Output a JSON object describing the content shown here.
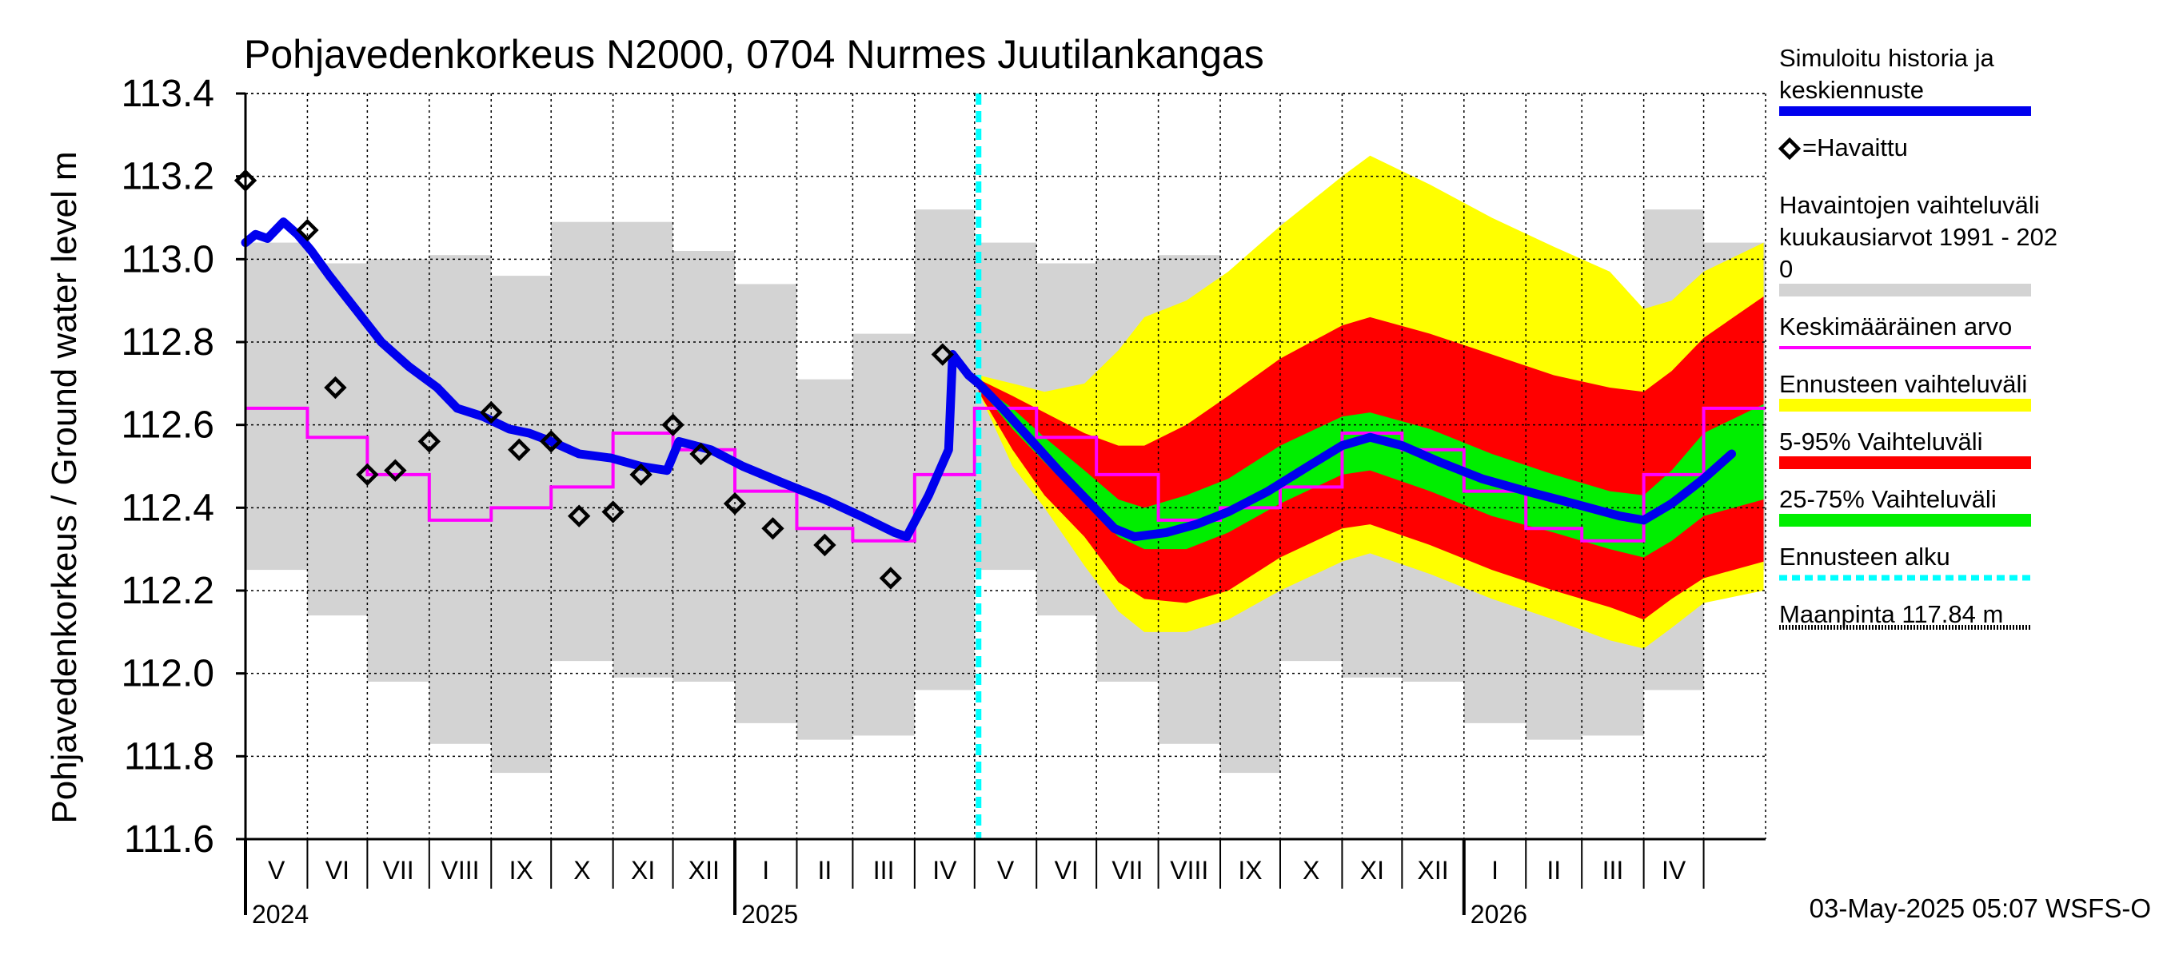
{
  "chart_data": {
    "type": "line",
    "title": "Pohjavedenkorkeus N2000, 0704 Nurmes Juutilankangas",
    "ylabel": "Pohjavedenkorkeus / Ground water level   m",
    "xlabel": "",
    "ylim": [
      111.6,
      113.4
    ],
    "yticks": [
      111.6,
      111.8,
      112.0,
      112.2,
      112.4,
      112.6,
      112.8,
      113.0,
      113.2,
      113.4
    ],
    "ytick_labels": [
      "111.6",
      "111.8",
      "112.0",
      "112.2",
      "112.4",
      "112.6",
      "112.8",
      "113.0",
      "113.2",
      "113.4"
    ],
    "x_range": [
      "2024-05-01",
      "2026-05-31"
    ],
    "months": [
      {
        "label": "V",
        "start": "2024-05-01"
      },
      {
        "label": "VI",
        "start": "2024-06-01"
      },
      {
        "label": "VII",
        "start": "2024-07-01"
      },
      {
        "label": "VIII",
        "start": "2024-08-01"
      },
      {
        "label": "IX",
        "start": "2024-09-01"
      },
      {
        "label": "X",
        "start": "2024-10-01"
      },
      {
        "label": "XI",
        "start": "2024-11-01"
      },
      {
        "label": "XII",
        "start": "2024-12-01"
      },
      {
        "label": "I",
        "start": "2025-01-01"
      },
      {
        "label": "II",
        "start": "2025-02-01"
      },
      {
        "label": "III",
        "start": "2025-03-01"
      },
      {
        "label": "IV",
        "start": "2025-04-01"
      },
      {
        "label": "V",
        "start": "2025-05-01"
      },
      {
        "label": "VI",
        "start": "2025-06-01"
      },
      {
        "label": "VII",
        "start": "2025-07-01"
      },
      {
        "label": "VIII",
        "start": "2025-08-01"
      },
      {
        "label": "IX",
        "start": "2025-09-01"
      },
      {
        "label": "X",
        "start": "2025-10-01"
      },
      {
        "label": "XI",
        "start": "2025-11-01"
      },
      {
        "label": "XII",
        "start": "2025-12-01"
      },
      {
        "label": "I",
        "start": "2026-01-01"
      },
      {
        "label": "II",
        "start": "2026-02-01"
      },
      {
        "label": "III",
        "start": "2026-03-01"
      },
      {
        "label": "IV",
        "start": "2026-04-01"
      },
      {
        "label": "",
        "start": "2026-05-01"
      }
    ],
    "year_labels": [
      {
        "label": "2024",
        "date": "2024-05-01"
      },
      {
        "label": "2025",
        "date": "2025-01-01"
      },
      {
        "label": "2026",
        "date": "2026-01-01"
      }
    ],
    "forecast_start": "2025-05-03",
    "grid": true,
    "legend_position": "right",
    "legend": [
      {
        "label_lines": [
          "Simuloitu historia ja",
          "keskiennuste"
        ],
        "style": "thick-line",
        "color": "#0000ee"
      },
      {
        "label_lines": [
          "=Havaittu"
        ],
        "style": "diamond-marker",
        "color": "#000000"
      },
      {
        "label_lines": [
          "Havaintojen vaihteluväli",
          " kuukausiarvot 1991 - 202",
          "0"
        ],
        "style": "band",
        "color": "#d3d3d3"
      },
      {
        "label_lines": [
          "Keskimääräinen arvo"
        ],
        "style": "thin-line",
        "color": "#ff00ff"
      },
      {
        "label_lines": [
          "Ennusteen vaihteluväli"
        ],
        "style": "band",
        "color": "#ffff00"
      },
      {
        "label_lines": [
          "5-95% Vaihteluväli"
        ],
        "style": "band",
        "color": "#ff0000"
      },
      {
        "label_lines": [
          "25-75% Vaihteluväli"
        ],
        "style": "band",
        "color": "#00ee00"
      },
      {
        "label_lines": [
          "Ennusteen alku"
        ],
        "style": "dashed-line",
        "color": "#00ffff"
      },
      {
        "label_lines": [
          "Maanpinta 117.84 m"
        ],
        "style": "dotted-line",
        "color": "#000000"
      }
    ],
    "footer": "03-May-2025 05:07 WSFS-O",
    "colors": {
      "history_range": "#d3d3d3",
      "mean": "#ff00ff",
      "simulated": "#0000ee",
      "forecast_full": "#ffff00",
      "p5_95": "#ff0000",
      "p25_75": "#00ee00",
      "forecast_start": "#00ffff",
      "observed": "#000000"
    },
    "monthly_history_range": [
      {
        "month": "2024-05",
        "min": 112.25,
        "max": 113.04
      },
      {
        "month": "2024-06",
        "min": 112.14,
        "max": 112.99
      },
      {
        "month": "2024-07",
        "min": 111.98,
        "max": 113.0
      },
      {
        "month": "2024-08",
        "min": 111.83,
        "max": 113.01
      },
      {
        "month": "2024-09",
        "min": 111.76,
        "max": 112.96
      },
      {
        "month": "2024-10",
        "min": 112.03,
        "max": 113.09
      },
      {
        "month": "2024-11",
        "min": 111.99,
        "max": 113.09
      },
      {
        "month": "2024-12",
        "min": 111.98,
        "max": 113.02
      },
      {
        "month": "2025-01",
        "min": 111.88,
        "max": 112.94
      },
      {
        "month": "2025-02",
        "min": 111.84,
        "max": 112.71
      },
      {
        "month": "2025-03",
        "min": 111.85,
        "max": 112.82
      },
      {
        "month": "2025-04",
        "min": 111.96,
        "max": 113.12
      },
      {
        "month": "2025-05",
        "min": 112.25,
        "max": 113.04
      },
      {
        "month": "2025-06",
        "min": 112.14,
        "max": 112.99
      },
      {
        "month": "2025-07",
        "min": 111.98,
        "max": 113.0
      },
      {
        "month": "2025-08",
        "min": 111.83,
        "max": 113.01
      },
      {
        "month": "2025-09",
        "min": 111.76,
        "max": 112.96
      },
      {
        "month": "2025-10",
        "min": 112.03,
        "max": 113.09
      },
      {
        "month": "2025-11",
        "min": 111.99,
        "max": 113.09
      },
      {
        "month": "2025-12",
        "min": 111.98,
        "max": 113.02
      },
      {
        "month": "2026-01",
        "min": 111.88,
        "max": 112.94
      },
      {
        "month": "2026-02",
        "min": 111.84,
        "max": 112.71
      },
      {
        "month": "2026-03",
        "min": 111.85,
        "max": 112.82
      },
      {
        "month": "2026-04",
        "min": 111.96,
        "max": 113.12
      },
      {
        "month": "2026-05",
        "min": 112.25,
        "max": 113.04
      }
    ],
    "monthly_mean": [
      {
        "month": "2024-05",
        "value": 112.64
      },
      {
        "month": "2024-06",
        "value": 112.57
      },
      {
        "month": "2024-07",
        "value": 112.48
      },
      {
        "month": "2024-08",
        "value": 112.37
      },
      {
        "month": "2024-09",
        "value": 112.4
      },
      {
        "month": "2024-10",
        "value": 112.45
      },
      {
        "month": "2024-11",
        "value": 112.58
      },
      {
        "month": "2024-12",
        "value": 112.54
      },
      {
        "month": "2025-01",
        "value": 112.44
      },
      {
        "month": "2025-02",
        "value": 112.35
      },
      {
        "month": "2025-03",
        "value": 112.32
      },
      {
        "month": "2025-04",
        "value": 112.48
      },
      {
        "month": "2025-05",
        "value": 112.64
      },
      {
        "month": "2025-06",
        "value": 112.57
      },
      {
        "month": "2025-07",
        "value": 112.48
      },
      {
        "month": "2025-08",
        "value": 112.37
      },
      {
        "month": "2025-09",
        "value": 112.4
      },
      {
        "month": "2025-10",
        "value": 112.45
      },
      {
        "month": "2025-11",
        "value": 112.58
      },
      {
        "month": "2025-12",
        "value": 112.54
      },
      {
        "month": "2026-01",
        "value": 112.44
      },
      {
        "month": "2026-02",
        "value": 112.35
      },
      {
        "month": "2026-03",
        "value": 112.32
      },
      {
        "month": "2026-04",
        "value": 112.48
      },
      {
        "month": "2026-05",
        "value": 112.64
      }
    ],
    "simulated_series": [
      {
        "date": "2024-05-01",
        "value": 113.04
      },
      {
        "date": "2024-05-06",
        "value": 113.06
      },
      {
        "date": "2024-05-12",
        "value": 113.05
      },
      {
        "date": "2024-05-20",
        "value": 113.09
      },
      {
        "date": "2024-05-27",
        "value": 113.06
      },
      {
        "date": "2024-06-03",
        "value": 113.02
      },
      {
        "date": "2024-06-12",
        "value": 112.96
      },
      {
        "date": "2024-06-25",
        "value": 112.88
      },
      {
        "date": "2024-07-08",
        "value": 112.8
      },
      {
        "date": "2024-07-22",
        "value": 112.74
      },
      {
        "date": "2024-08-05",
        "value": 112.69
      },
      {
        "date": "2024-08-15",
        "value": 112.64
      },
      {
        "date": "2024-08-28",
        "value": 112.62
      },
      {
        "date": "2024-09-10",
        "value": 112.59
      },
      {
        "date": "2024-09-20",
        "value": 112.58
      },
      {
        "date": "2024-10-01",
        "value": 112.56
      },
      {
        "date": "2024-10-15",
        "value": 112.53
      },
      {
        "date": "2024-10-31",
        "value": 112.52
      },
      {
        "date": "2024-11-15",
        "value": 112.5
      },
      {
        "date": "2024-11-28",
        "value": 112.49
      },
      {
        "date": "2024-12-04",
        "value": 112.56
      },
      {
        "date": "2024-12-20",
        "value": 112.54
      },
      {
        "date": "2025-01-05",
        "value": 112.5
      },
      {
        "date": "2025-01-25",
        "value": 112.46
      },
      {
        "date": "2025-02-15",
        "value": 112.42
      },
      {
        "date": "2025-03-05",
        "value": 112.38
      },
      {
        "date": "2025-03-22",
        "value": 112.34
      },
      {
        "date": "2025-03-28",
        "value": 112.33
      },
      {
        "date": "2025-04-08",
        "value": 112.43
      },
      {
        "date": "2025-04-18",
        "value": 112.54
      },
      {
        "date": "2025-04-20",
        "value": 112.77
      },
      {
        "date": "2025-04-28",
        "value": 112.72
      },
      {
        "date": "2025-05-03",
        "value": 112.7
      },
      {
        "date": "2025-05-15",
        "value": 112.64
      },
      {
        "date": "2025-05-28",
        "value": 112.57
      },
      {
        "date": "2025-06-12",
        "value": 112.49
      },
      {
        "date": "2025-06-28",
        "value": 112.41
      },
      {
        "date": "2025-07-10",
        "value": 112.35
      },
      {
        "date": "2025-07-20",
        "value": 112.33
      },
      {
        "date": "2025-08-05",
        "value": 112.34
      },
      {
        "date": "2025-08-20",
        "value": 112.36
      },
      {
        "date": "2025-09-05",
        "value": 112.39
      },
      {
        "date": "2025-09-25",
        "value": 112.44
      },
      {
        "date": "2025-10-15",
        "value": 112.5
      },
      {
        "date": "2025-11-01",
        "value": 112.55
      },
      {
        "date": "2025-11-15",
        "value": 112.57
      },
      {
        "date": "2025-12-01",
        "value": 112.55
      },
      {
        "date": "2025-12-20",
        "value": 112.51
      },
      {
        "date": "2026-01-10",
        "value": 112.47
      },
      {
        "date": "2026-02-01",
        "value": 112.44
      },
      {
        "date": "2026-02-25",
        "value": 112.41
      },
      {
        "date": "2026-03-20",
        "value": 112.38
      },
      {
        "date": "2026-04-01",
        "value": 112.37
      },
      {
        "date": "2026-04-15",
        "value": 112.41
      },
      {
        "date": "2026-05-01",
        "value": 112.47
      },
      {
        "date": "2026-05-15",
        "value": 112.53
      }
    ],
    "forecast_bands": [
      {
        "date": "2025-05-03",
        "full_min": 112.68,
        "p5": 112.68,
        "p25": 112.69,
        "p75": 112.7,
        "p95": 112.71,
        "full_max": 112.72
      },
      {
        "date": "2025-05-20",
        "full_min": 112.5,
        "p5": 112.54,
        "p25": 112.59,
        "p75": 112.64,
        "p95": 112.67,
        "full_max": 112.7
      },
      {
        "date": "2025-06-05",
        "full_min": 112.4,
        "p5": 112.43,
        "p25": 112.51,
        "p75": 112.57,
        "p95": 112.63,
        "full_max": 112.68
      },
      {
        "date": "2025-06-25",
        "full_min": 112.26,
        "p5": 112.33,
        "p25": 112.41,
        "p75": 112.49,
        "p95": 112.58,
        "full_max": 112.7
      },
      {
        "date": "2025-07-12",
        "full_min": 112.15,
        "p5": 112.22,
        "p25": 112.33,
        "p75": 112.42,
        "p95": 112.55,
        "full_max": 112.78
      },
      {
        "date": "2025-07-25",
        "full_min": 112.1,
        "p5": 112.18,
        "p25": 112.3,
        "p75": 112.4,
        "p95": 112.55,
        "full_max": 112.86
      },
      {
        "date": "2025-08-15",
        "full_min": 112.1,
        "p5": 112.17,
        "p25": 112.3,
        "p75": 112.43,
        "p95": 112.6,
        "full_max": 112.9
      },
      {
        "date": "2025-09-05",
        "full_min": 112.13,
        "p5": 112.2,
        "p25": 112.34,
        "p75": 112.47,
        "p95": 112.67,
        "full_max": 112.97
      },
      {
        "date": "2025-10-01",
        "full_min": 112.2,
        "p5": 112.28,
        "p25": 112.41,
        "p75": 112.55,
        "p95": 112.76,
        "full_max": 113.08
      },
      {
        "date": "2025-11-01",
        "full_min": 112.27,
        "p5": 112.35,
        "p25": 112.48,
        "p75": 112.62,
        "p95": 112.84,
        "full_max": 113.2
      },
      {
        "date": "2025-11-15",
        "full_min": 112.29,
        "p5": 112.36,
        "p25": 112.49,
        "p75": 112.63,
        "p95": 112.86,
        "full_max": 113.25
      },
      {
        "date": "2025-12-15",
        "full_min": 112.24,
        "p5": 112.31,
        "p25": 112.44,
        "p75": 112.59,
        "p95": 112.82,
        "full_max": 113.18
      },
      {
        "date": "2026-01-15",
        "full_min": 112.18,
        "p5": 112.25,
        "p25": 112.38,
        "p75": 112.53,
        "p95": 112.77,
        "full_max": 113.1
      },
      {
        "date": "2026-02-15",
        "full_min": 112.13,
        "p5": 112.2,
        "p25": 112.34,
        "p75": 112.48,
        "p95": 112.72,
        "full_max": 113.03
      },
      {
        "date": "2026-03-15",
        "full_min": 112.08,
        "p5": 112.16,
        "p25": 112.3,
        "p75": 112.44,
        "p95": 112.69,
        "full_max": 112.97
      },
      {
        "date": "2026-04-01",
        "full_min": 112.06,
        "p5": 112.13,
        "p25": 112.28,
        "p75": 112.43,
        "p95": 112.68,
        "full_max": 112.88
      },
      {
        "date": "2026-04-15",
        "full_min": 112.11,
        "p5": 112.18,
        "p25": 112.32,
        "p75": 112.49,
        "p95": 112.73,
        "full_max": 112.9
      },
      {
        "date": "2026-05-01",
        "full_min": 112.17,
        "p5": 112.23,
        "p25": 112.38,
        "p75": 112.58,
        "p95": 112.81,
        "full_max": 112.97
      },
      {
        "date": "2026-05-31",
        "full_min": 112.2,
        "p5": 112.27,
        "p25": 112.42,
        "p75": 112.65,
        "p95": 112.91,
        "full_max": 113.04
      }
    ],
    "observed": [
      {
        "date": "2024-05-01",
        "value": 113.19
      },
      {
        "date": "2024-06-01",
        "value": 113.07
      },
      {
        "date": "2024-06-15",
        "value": 112.69
      },
      {
        "date": "2024-07-01",
        "value": 112.48
      },
      {
        "date": "2024-07-15",
        "value": 112.49
      },
      {
        "date": "2024-08-01",
        "value": 112.56
      },
      {
        "date": "2024-09-01",
        "value": 112.63
      },
      {
        "date": "2024-09-15",
        "value": 112.54
      },
      {
        "date": "2024-10-01",
        "value": 112.56
      },
      {
        "date": "2024-10-15",
        "value": 112.38
      },
      {
        "date": "2024-11-01",
        "value": 112.39
      },
      {
        "date": "2024-11-15",
        "value": 112.48
      },
      {
        "date": "2024-12-01",
        "value": 112.6
      },
      {
        "date": "2024-12-15",
        "value": 112.53
      },
      {
        "date": "2025-01-01",
        "value": 112.41
      },
      {
        "date": "2025-01-20",
        "value": 112.35
      },
      {
        "date": "2025-02-15",
        "value": 112.31
      },
      {
        "date": "2025-03-20",
        "value": 112.23
      },
      {
        "date": "2025-04-15",
        "value": 112.77
      }
    ]
  }
}
